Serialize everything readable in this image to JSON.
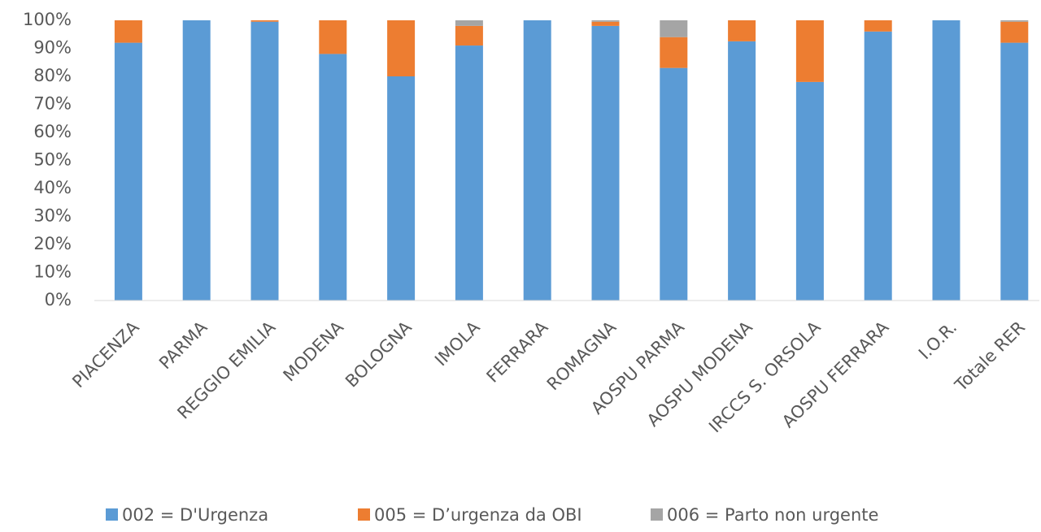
{
  "chart_data": {
    "type": "stacked_bar",
    "categories": [
      "PIACENZA",
      "PARMA",
      "REGGIO EMILIA",
      "MODENA",
      "BOLOGNA",
      "IMOLA",
      "FERRARA",
      "ROMAGNA",
      "AOSPU PARMA",
      "AOSPU MODENA",
      "IRCCS S. ORSOLA",
      "AOSPU FERRARA",
      "I.O.R.",
      "Totale RER"
    ],
    "series": [
      {
        "name": "002 = D'Urgenza",
        "color": "#5b9bd5",
        "values": [
          92,
          100,
          99.5,
          88,
          80,
          91,
          100,
          98,
          83,
          92.5,
          78,
          96,
          100,
          92
        ]
      },
      {
        "name": "005 = D’urgenza da OBI",
        "color": "#ed7d31",
        "values": [
          8,
          0,
          0.5,
          12,
          20,
          7,
          0,
          1.5,
          11,
          7.5,
          22,
          4,
          0,
          7.5
        ]
      },
      {
        "name": "006 = Parto non urgente",
        "color": "#a5a5a5",
        "values": [
          0,
          0,
          0,
          0,
          0,
          2,
          0,
          0.5,
          6,
          0,
          0,
          0,
          0,
          0.5
        ]
      }
    ],
    "ylim": [
      0,
      100
    ],
    "yticks": [
      {
        "value": 0,
        "label": "0%"
      },
      {
        "value": 10,
        "label": "10%"
      },
      {
        "value": 20,
        "label": "20%"
      },
      {
        "value": 30,
        "label": "30%"
      },
      {
        "value": 40,
        "label": "40%"
      },
      {
        "value": 50,
        "label": "50%"
      },
      {
        "value": 60,
        "label": "60%"
      },
      {
        "value": 70,
        "label": "70%"
      },
      {
        "value": 80,
        "label": "80%"
      },
      {
        "value": 90,
        "label": "90%"
      },
      {
        "value": 100,
        "label": "100%"
      }
    ],
    "grid": false,
    "legend": "bottom"
  }
}
